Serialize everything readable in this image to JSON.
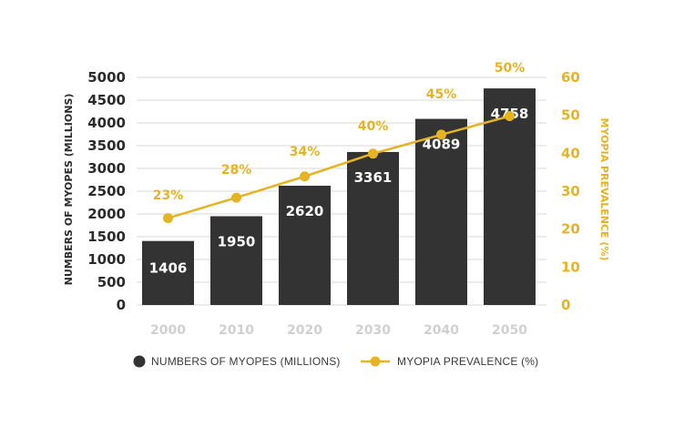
{
  "chart_data": {
    "type": "bar",
    "categories": [
      "2000",
      "2010",
      "2020",
      "2030",
      "2040",
      "2050"
    ],
    "series": [
      {
        "name": "NUMBERS OF MYOPES (MILLIONS)",
        "chart_type": "bar",
        "axis": "left",
        "values": [
          1406,
          1950,
          2620,
          3361,
          4089,
          4758
        ],
        "labels": [
          "1406",
          "1950",
          "2620",
          "3361",
          "4089",
          "4758"
        ],
        "color": "#333333"
      },
      {
        "name": "MYOPIA PREVALENCE (%)",
        "chart_type": "line",
        "axis": "right",
        "values": [
          22.9,
          28.3,
          33.9,
          39.9,
          44.9,
          49.8
        ],
        "labels": [
          "23%",
          "28%",
          "34%",
          "40%",
          "45%",
          "50%"
        ],
        "color": "#e6b422"
      }
    ],
    "ylabel_left": "NUMBERS OF MYOPES (MILLIONS)",
    "ylabel_right": "MYOPIA PREVALENCE (%)",
    "ylim_left": [
      0,
      5000
    ],
    "yticks_left": [
      "0",
      "500",
      "1000",
      "1500",
      "2000",
      "2500",
      "3000",
      "3500",
      "4000",
      "4500",
      "5000"
    ],
    "ylim_right": [
      0,
      60
    ],
    "yticks_right": [
      "0",
      "10",
      "20",
      "30",
      "40",
      "50",
      "60"
    ],
    "grid": true,
    "legend": "bottom"
  }
}
